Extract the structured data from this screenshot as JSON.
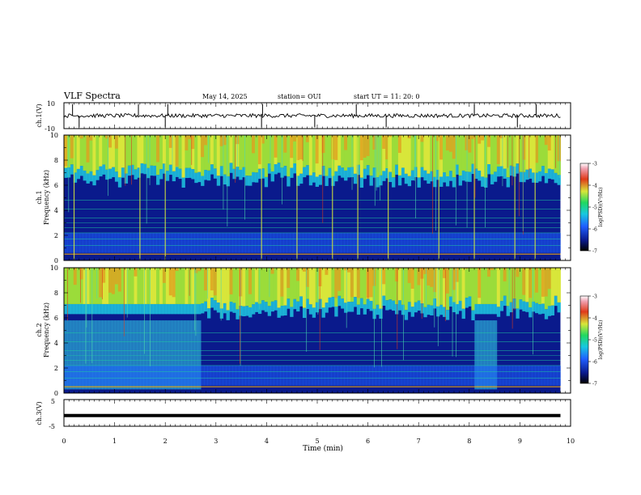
{
  "header": {
    "title": "VLF Spectra",
    "date": "May 14, 2025",
    "station": "station= OUI",
    "start": "start UT =  11: 20: 0"
  },
  "panels": {
    "ch1v": {
      "label": "ch.1(V)",
      "yticks": [
        "10",
        "-10"
      ]
    },
    "spec1": {
      "label": "ch.1\nFrequency (kHz)",
      "label_top": "ch.1",
      "label_bottom": "Frequency (kHz)"
    },
    "spec2": {
      "label_top": "ch.2",
      "label_bottom": "Frequency (kHz)"
    },
    "ch3v": {
      "label": "ch.3(V)",
      "yticks": [
        "5",
        "-5"
      ]
    }
  },
  "colorbars": [
    {
      "ticks": [
        "-3",
        "-4",
        "-5",
        "-6",
        "-7"
      ],
      "label": "log(PSD)(V²/Hz)"
    },
    {
      "ticks": [
        "-3",
        "-4",
        "-5",
        "-6",
        "-7"
      ],
      "label": "log(PSD)(V²/Hz)"
    }
  ],
  "xaxis": {
    "label": "Time (min)",
    "ticks": [
      "0",
      "1",
      "2",
      "3",
      "4",
      "5",
      "6",
      "7",
      "8",
      "9",
      "10"
    ]
  },
  "chart_data": [
    {
      "type": "line",
      "name": "ch.1 waveform",
      "ylabel": "ch.1(V)",
      "xlim": [
        0,
        10
      ],
      "ylim": [
        -10,
        10
      ],
      "baseline": 0,
      "spikes_min": [
        0.17,
        0.3,
        1.47,
        2.0,
        2.05,
        3.9,
        3.92,
        4.95,
        5.77,
        6.36,
        8.1,
        8.95,
        9.32
      ],
      "data_end_min": 9.8
    },
    {
      "type": "heatmap",
      "name": "ch.1 spectrogram",
      "ylabel": "Frequency (kHz)",
      "xlim": [
        0,
        10
      ],
      "ylim": [
        0,
        10
      ],
      "yticks": [
        0,
        2,
        4,
        6,
        8,
        10
      ],
      "colorbar_range": [
        -7,
        -3
      ],
      "data_end_min": 9.8,
      "bright_events_min": [
        0.2,
        1.5,
        2.0,
        3.9,
        4.6,
        5.3,
        5.8,
        6.4,
        7.4,
        8.1,
        8.9,
        9.3
      ]
    },
    {
      "type": "heatmap",
      "name": "ch.2 spectrogram",
      "ylabel": "Frequency (kHz)",
      "xlim": [
        0,
        10
      ],
      "ylim": [
        0,
        10
      ],
      "yticks": [
        0,
        2,
        4,
        6,
        8,
        10
      ],
      "colorbar_range": [
        -7,
        -3
      ],
      "data_end_min": 9.8,
      "elevated_noise_intervals_min": [
        [
          0,
          2.7
        ],
        [
          8.1,
          8.5
        ]
      ]
    },
    {
      "type": "line",
      "name": "ch.3 waveform",
      "ylabel": "ch.3(V)",
      "xlim": [
        0,
        10
      ],
      "ylim": [
        -5,
        5
      ],
      "level": -1,
      "data_end_min": 9.8
    }
  ],
  "colors": {
    "axis": "#000000",
    "spectrum_low": "#0a1a8c",
    "spectrum_mid": "#1fc8e0",
    "spectrum_high": "#d8e63a",
    "spectrum_peak": "#e03a1a"
  }
}
